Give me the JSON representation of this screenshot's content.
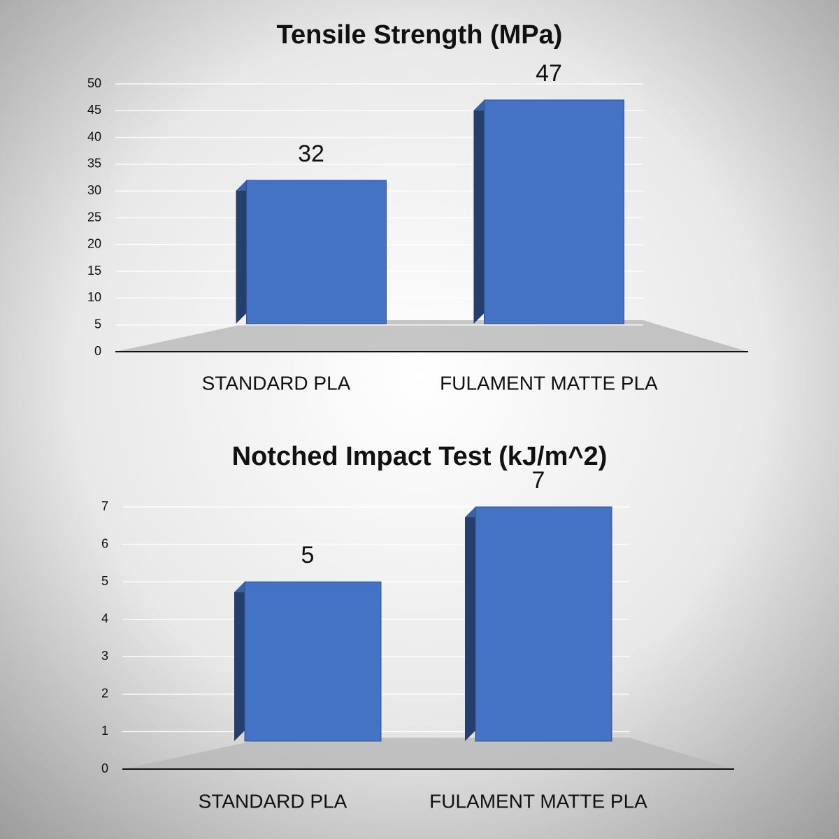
{
  "chart_data": [
    {
      "type": "bar",
      "title": "Tensile Strength (MPa)",
      "categories": [
        "STANDARD PLA",
        "FULAMENT MATTE PLA"
      ],
      "values": [
        32,
        47
      ],
      "color": "#4472c4",
      "ylim": [
        0,
        50
      ],
      "yticks": [
        0,
        5,
        10,
        15,
        20,
        25,
        30,
        35,
        40,
        45,
        50
      ],
      "grid": true
    },
    {
      "type": "bar",
      "title": "Notched Impact Test (kJ/m^2)",
      "categories": [
        "STANDARD PLA",
        "FULAMENT MATTE PLA"
      ],
      "values": [
        5,
        7
      ],
      "color": "#4472c4",
      "ylim": [
        0,
        7
      ],
      "yticks": [
        0,
        1,
        2,
        3,
        4,
        5,
        6,
        7
      ],
      "grid": true
    }
  ]
}
